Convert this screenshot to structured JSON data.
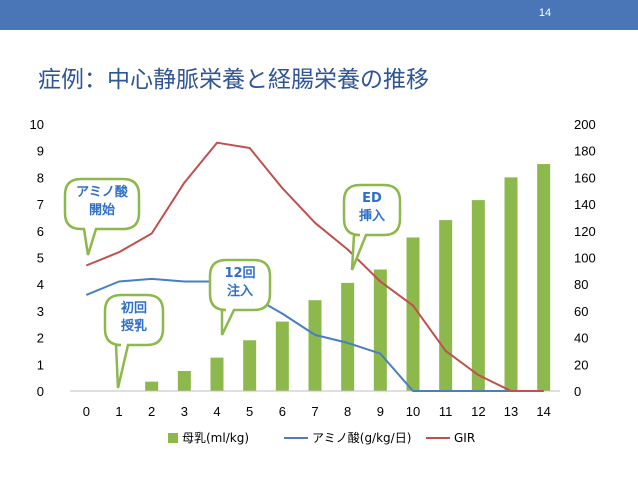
{
  "page_number": "14",
  "title": "症例：中心静脈栄養と経腸栄養の推移",
  "colors": {
    "header_bar": "#4a76b8",
    "title": "#2f5597",
    "bar": "#8cb84c",
    "amino": "#4a7ec2",
    "gir": "#c0504d",
    "callout_border": "#8cb84c",
    "callout_text": "#2f6fc9"
  },
  "chart_data": {
    "type": "bar+line",
    "categories": [
      0,
      1,
      2,
      3,
      4,
      5,
      6,
      7,
      8,
      9,
      10,
      11,
      12,
      13,
      14
    ],
    "left_axis": {
      "min": 0,
      "max": 10,
      "ticks": [
        "0",
        "1",
        "2",
        "3",
        "4",
        "5",
        "6",
        "7",
        "8",
        "9",
        "10"
      ]
    },
    "right_axis": {
      "min": 0,
      "max": 200,
      "ticks": [
        "0",
        "20",
        "40",
        "60",
        "80",
        "100",
        "120",
        "140",
        "160",
        "180",
        "200"
      ]
    },
    "series": [
      {
        "name": "母乳(ml/kg)",
        "type": "bar",
        "axis": "right",
        "values": [
          0,
          0,
          7,
          15,
          25,
          38,
          52,
          68,
          81,
          91,
          115,
          128,
          143,
          160,
          170
        ]
      },
      {
        "name": "アミノ酸(g/kg/日)",
        "type": "line",
        "axis": "left",
        "values": [
          3.6,
          4.1,
          4.2,
          4.1,
          4.1,
          3.6,
          2.9,
          2.1,
          1.8,
          1.4,
          0,
          0,
          0,
          0,
          0
        ]
      },
      {
        "name": "GIR",
        "type": "line",
        "axis": "left",
        "values": [
          4.7,
          5.2,
          5.9,
          7.8,
          9.3,
          9.1,
          7.6,
          6.3,
          5.3,
          4.1,
          3.2,
          1.5,
          0.6,
          0,
          0
        ]
      }
    ],
    "legend": [
      "母乳(ml/kg)",
      "アミノ酸(g/kg/日)",
      "GIR"
    ],
    "legend_position": "bottom",
    "annotations": [
      {
        "text": [
          "アミノ酸",
          "開始"
        ],
        "points_to_x": 0
      },
      {
        "text": [
          "初回",
          "授乳"
        ],
        "points_to_x": 1
      },
      {
        "text": [
          "12回",
          "注入"
        ],
        "points_to_x": 4
      },
      {
        "text": [
          "ED",
          "挿入"
        ],
        "points_to_x": 8
      }
    ]
  }
}
